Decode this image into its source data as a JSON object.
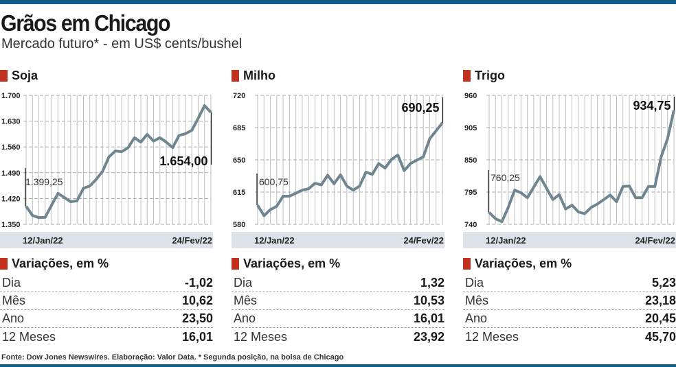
{
  "header": {
    "title": "Grãos em Chicago",
    "subtitle": "Mercado futuro* - em US$ cents/bushel"
  },
  "colors": {
    "accent": "#c0311e",
    "line": "#6f858f",
    "bar": "#0f5f8a",
    "date_band": "#dde3e8"
  },
  "chart_data": [
    {
      "type": "line",
      "title": "Soja",
      "ylim": [
        1350,
        1700
      ],
      "yticks": [
        "1.700",
        "1.630",
        "1.560",
        "1.490",
        "1.420",
        "1.350"
      ],
      "ytick_values": [
        1700,
        1630,
        1560,
        1490,
        1420,
        1350
      ],
      "x_start_label": "12/Jan/22",
      "x_end_label": "24/Fev/22",
      "start_label": "1.399,25",
      "end_label": "1.654,00",
      "values": [
        1399,
        1374,
        1368,
        1369,
        1402,
        1434,
        1423,
        1411,
        1414,
        1448,
        1454,
        1472,
        1494,
        1533,
        1549,
        1547,
        1558,
        1585,
        1573,
        1594,
        1576,
        1585,
        1573,
        1558,
        1591,
        1596,
        1605,
        1637,
        1672,
        1654
      ]
    },
    {
      "type": "line",
      "title": "Milho",
      "ylim": [
        580,
        720
      ],
      "yticks": [
        "720",
        "685",
        "650",
        "615",
        "580"
      ],
      "ytick_values": [
        720,
        685,
        650,
        615,
        580
      ],
      "x_start_label": "12/Jan/22",
      "x_end_label": "24/Fev/22",
      "start_label": "600,75",
      "end_label": "690,25",
      "values": [
        600.75,
        589.3,
        595.9,
        599.6,
        610.5,
        610.5,
        613.7,
        617.1,
        618.6,
        624.5,
        622.8,
        633.3,
        624,
        633.8,
        621.5,
        617.1,
        621.5,
        636.7,
        634.2,
        646,
        641.1,
        650.4,
        655.3,
        638.2,
        646,
        649.7,
        653.3,
        672.8,
        681.4,
        690.25
      ]
    },
    {
      "type": "line",
      "title": "Trigo",
      "ylim": [
        740,
        960
      ],
      "yticks": [
        "960",
        "905",
        "850",
        "795",
        "740"
      ],
      "ytick_values": [
        960,
        905,
        850,
        795,
        740
      ],
      "x_start_label": "12/Jan/22",
      "x_end_label": "24/Fev/22",
      "start_label": "760,25",
      "end_label": "934,75",
      "values": [
        760.25,
        749.6,
        744.6,
        768.8,
        798.4,
        793.8,
        785.3,
        803.4,
        821.4,
        801.5,
        782.3,
        790.7,
        766.1,
        772.7,
        761.2,
        758.1,
        768.8,
        774.6,
        782.3,
        790,
        778.5,
        804.5,
        805.3,
        785.3,
        785.3,
        804.5,
        804.5,
        855.2,
        885.9,
        934.75
      ]
    }
  ],
  "variations": {
    "title": "Variações, em %",
    "labels": [
      "Dia",
      "Mês",
      "Ano",
      "12 Meses"
    ],
    "panels": [
      {
        "values": [
          "-1,02",
          "10,62",
          "23,50",
          "16,01"
        ]
      },
      {
        "values": [
          "1,32",
          "10,53",
          "16,01",
          "23,92"
        ]
      },
      {
        "values": [
          "5,23",
          "23,18",
          "20,45",
          "45,70"
        ]
      }
    ]
  },
  "footer": "Fonte: Dow Jones Newswires. Elaboração: Valor Data. * Segunda posição, na bolsa de Chicago"
}
